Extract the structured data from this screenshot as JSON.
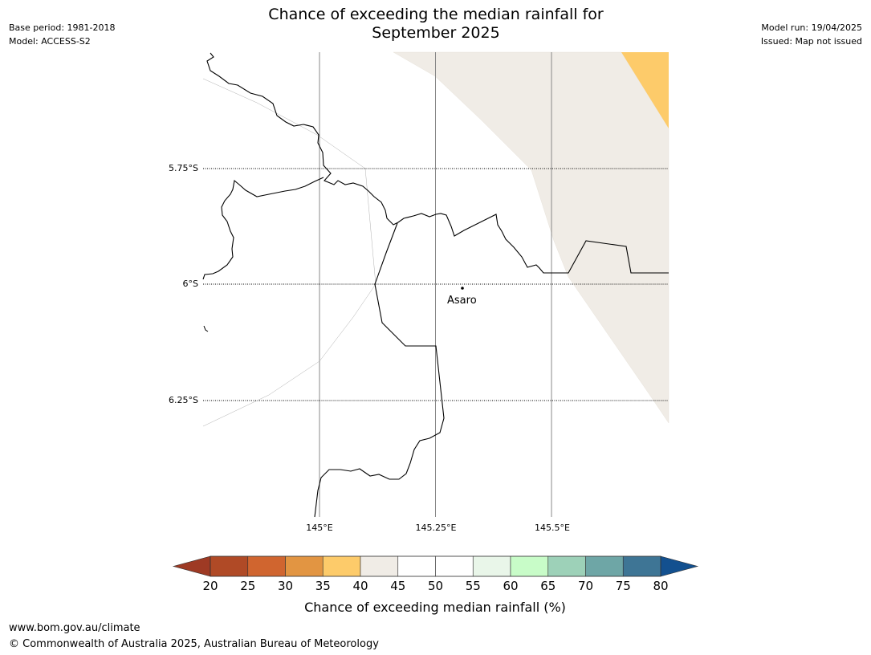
{
  "header": {
    "title_line1": "Chance of exceeding the median rainfall for",
    "title_line2": "September 2025",
    "base_period": "Base period: 1981-2018",
    "model": "Model: ACCESS-S2",
    "model_run": "Model run: 19/04/2025",
    "issued": "Issued: Map not issued"
  },
  "map": {
    "lat_labels": [
      "5.75°S",
      "6°S",
      "6.25°S"
    ],
    "lon_labels": [
      "145°E",
      "145.25°E",
      "145.5°E"
    ],
    "place": {
      "name": "Asaro",
      "lat": -6.01,
      "lon": 145.305
    },
    "region_categories": [
      {
        "range": "40-45",
        "color": "#f0ece6"
      },
      {
        "range": "35-40",
        "color": "#fdcb6a"
      },
      {
        "range": "45-55",
        "color": "#ffffff"
      }
    ]
  },
  "colorbar": {
    "label": "Chance of exceeding median rainfall (%)",
    "ticks": [
      "20",
      "25",
      "30",
      "35",
      "40",
      "45",
      "50",
      "55",
      "60",
      "65",
      "70",
      "75",
      "80"
    ],
    "low_extend_color": "#9e3a24",
    "high_extend_color": "#13508f",
    "bins": [
      "#b04a26",
      "#d0652f",
      "#e29542",
      "#fdcb6a",
      "#f0ece6",
      "#ffffff",
      "#ffffff",
      "#e9f6e9",
      "#c8fcc8",
      "#9dd1b8",
      "#6ea6a6",
      "#3e7595"
    ]
  },
  "footer": {
    "url": "www.bom.gov.au/climate",
    "copyright": "© Commonwealth of Australia 2025, Australian Bureau of Meteorology"
  }
}
